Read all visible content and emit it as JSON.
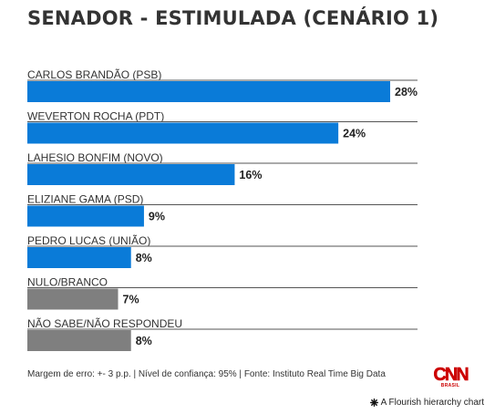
{
  "title": "SENADOR - ESTIMULADA (CENÁRIO 1)",
  "footer": "Margem de erro: +- 3 p.p. | Nível de confiança: 95% | Fonte: Instituto Real Time Big Data",
  "logo": {
    "text": "CNN",
    "subtext": "BRASIL",
    "color": "#cc0000"
  },
  "credit": "A Flourish hierarchy chart",
  "colors": {
    "candidate": "#0a7bd8",
    "other": "#7f7f7f"
  },
  "chart_data": {
    "type": "bar",
    "orientation": "horizontal",
    "title": "SENADOR - ESTIMULADA (CENÁRIO 1)",
    "categories": [
      "CARLOS BRANDÃO (PSB)",
      "WEVERTON ROCHA (PDT)",
      "LAHESIO BONFIM (NOVO)",
      "ELIZIANE GAMA (PSD)",
      "PEDRO LUCAS (UNIÃO)",
      "NULO/BRANCO",
      "NÃO SABE/NÃO RESPONDEU"
    ],
    "values": [
      28,
      24,
      16,
      9,
      8,
      7,
      8
    ],
    "value_labels": [
      "28%",
      "24%",
      "16%",
      "9%",
      "8%",
      "7%",
      "8%"
    ],
    "bar_colors": [
      "#0a7bd8",
      "#0a7bd8",
      "#0a7bd8",
      "#0a7bd8",
      "#0a7bd8",
      "#7f7f7f",
      "#7f7f7f"
    ],
    "xlim": [
      0,
      28
    ],
    "grid": false,
    "legend": "none"
  }
}
